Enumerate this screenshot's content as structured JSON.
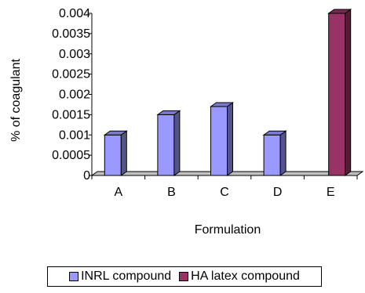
{
  "chart_data": {
    "type": "bar",
    "title": "",
    "xlabel": "Formulation",
    "ylabel": "% of coagulant",
    "categories": [
      "A",
      "B",
      "C",
      "D",
      "E"
    ],
    "yticks": [
      "0",
      "0.0005",
      "0.001",
      "0.0015",
      "0.002",
      "0.0025",
      "0.003",
      "0.0035",
      "0.004"
    ],
    "ylim": [
      0,
      0.004
    ],
    "style_3d": true,
    "grid": false,
    "legend_position": "bottom",
    "series": [
      {
        "name": "INRL compound",
        "color": "#9999ff",
        "values": [
          0.001,
          0.0015,
          0.0017,
          0.001,
          0
        ]
      },
      {
        "name": "HA latex compound",
        "color": "#993366",
        "values": [
          0,
          0,
          0,
          0,
          0.004
        ]
      }
    ]
  }
}
